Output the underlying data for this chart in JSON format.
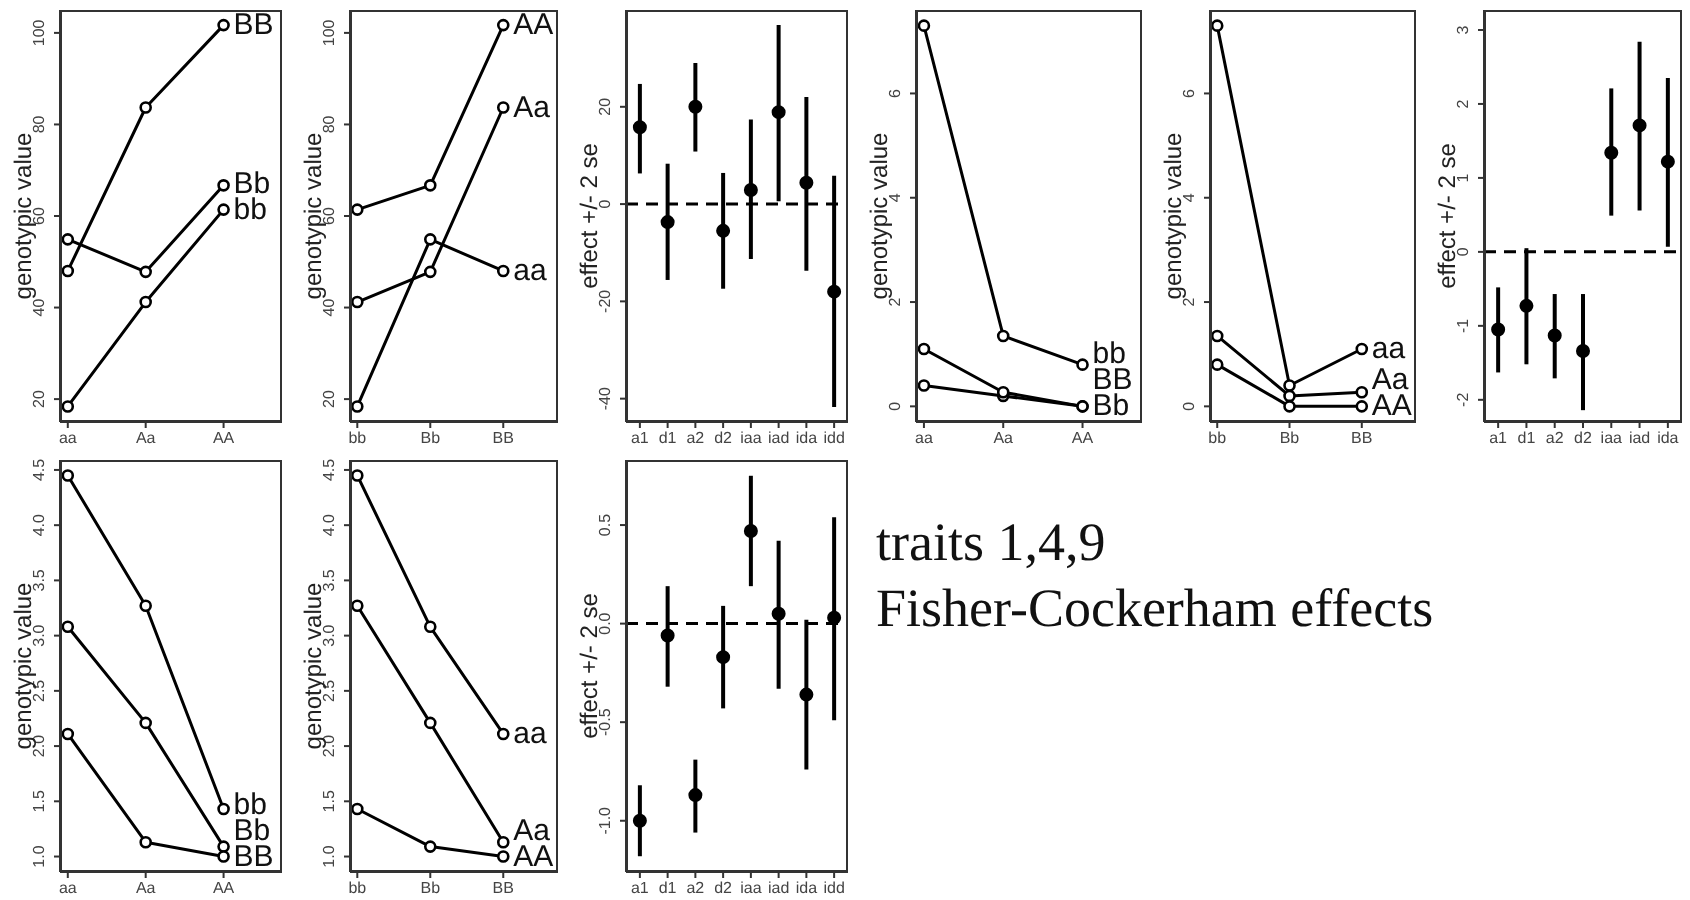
{
  "chart_data": [
    {
      "type": "line",
      "categories": [
        "aa",
        "Aa",
        "AA"
      ],
      "ylabel": "genotypic value",
      "ylim": [
        15,
        105
      ],
      "yticks": [
        20,
        40,
        60,
        80,
        100
      ],
      "marker": "circle",
      "series": [
        {
          "name": "BB",
          "color": "#000000",
          "values": [
            48,
            83.7,
            101.7
          ]
        },
        {
          "name": "Bb",
          "color": "#000000",
          "values": [
            54.9,
            47.8,
            66.7
          ]
        },
        {
          "name": "bb",
          "color": "#000000",
          "values": [
            18.4,
            41.2,
            61.4
          ]
        }
      ]
    },
    {
      "type": "line",
      "categories": [
        "bb",
        "Bb",
        "BB"
      ],
      "ylabel": "genotypic value",
      "ylim": [
        15,
        105
      ],
      "yticks": [
        20,
        40,
        60,
        80,
        100
      ],
      "marker": "circle",
      "series": [
        {
          "name": "AA",
          "color": "#000000",
          "values": [
            61.4,
            66.7,
            101.7
          ]
        },
        {
          "name": "Aa",
          "color": "#000000",
          "values": [
            41.2,
            47.8,
            83.7
          ]
        },
        {
          "name": "aa",
          "color": "#000000",
          "values": [
            18.4,
            54.9,
            48
          ]
        }
      ]
    },
    {
      "type": "scatter",
      "categories": [
        "a1",
        "d1",
        "a2",
        "d2",
        "iaa",
        "iad",
        "ida",
        "idd"
      ],
      "ylabel": "effect +/- 2 se",
      "ylim": [
        -44.8,
        39.9
      ],
      "yticks": [
        -40,
        -20,
        0,
        20
      ],
      "marker": "circle",
      "color": "#000000",
      "values": [
        15.8,
        -3.7,
        20,
        -5.5,
        2.9,
        18.9,
        4.4,
        -18
      ],
      "errors": [
        [
          6.3,
          24.7
        ],
        [
          -15.6,
          8.3
        ],
        [
          10.8,
          29
        ],
        [
          -17.4,
          6.4
        ],
        [
          -11.3,
          17.4
        ],
        [
          0.6,
          36.8
        ],
        [
          -13.7,
          22
        ],
        [
          -41.7,
          5.8
        ]
      ],
      "ref_lines": [
        {
          "axis": "y",
          "value": 0,
          "line_style": "dashed",
          "color": "#000000"
        }
      ]
    },
    {
      "type": "line",
      "categories": [
        "aa",
        "Aa",
        "AA"
      ],
      "ylabel": "genotypic value",
      "ylim": [
        -0.3,
        7.6
      ],
      "yticks": [
        0,
        2,
        4,
        6
      ],
      "marker": "circle",
      "series": [
        {
          "name": "bb",
          "color": "#000000",
          "values": [
            7.3,
            1.35,
            0.8
          ]
        },
        {
          "name": "Bb",
          "color": "#000000",
          "values": [
            0.4,
            0.2,
            0
          ]
        },
        {
          "name": "BB",
          "color": "#000000",
          "values": [
            1.1,
            0.27,
            0
          ]
        }
      ]
    },
    {
      "type": "line",
      "categories": [
        "bb",
        "Bb",
        "BB"
      ],
      "ylabel": "genotypic value",
      "ylim": [
        -0.3,
        7.6
      ],
      "yticks": [
        0,
        2,
        4,
        6
      ],
      "marker": "circle",
      "series": [
        {
          "name": "aa",
          "color": "#000000",
          "values": [
            7.3,
            0.4,
            1.1
          ]
        },
        {
          "name": "Aa",
          "color": "#000000",
          "values": [
            1.35,
            0.2,
            0.27
          ]
        },
        {
          "name": "AA",
          "color": "#000000",
          "values": [
            0.8,
            0,
            0
          ]
        }
      ]
    },
    {
      "type": "scatter",
      "categories": [
        "a1",
        "d1",
        "a2",
        "d2",
        "iaa",
        "iad",
        "ida"
      ],
      "ylabel": "effect +/- 2 se",
      "ylim": [
        -2.3,
        3.27
      ],
      "yticks": [
        -2,
        -1,
        0,
        1,
        2,
        3
      ],
      "marker": "circle",
      "color": "#000000",
      "values": [
        -1.05,
        -0.73,
        -1.13,
        -1.34,
        1.34,
        1.71,
        1.22
      ],
      "errors": [
        [
          -1.63,
          -0.48
        ],
        [
          -1.52,
          0.05
        ],
        [
          -1.71,
          -0.57
        ],
        [
          -2.14,
          -0.57
        ],
        [
          0.49,
          2.21
        ],
        [
          0.56,
          2.84
        ],
        [
          0.07,
          2.35
        ]
      ],
      "ref_lines": [
        {
          "axis": "y",
          "value": 0,
          "line_style": "dashed",
          "color": "#000000"
        }
      ]
    },
    {
      "type": "line",
      "categories": [
        "aa",
        "Aa",
        "AA"
      ],
      "ylabel": "genotypic value",
      "ylim": [
        0.86,
        4.59
      ],
      "yticks": [
        {
          "value": 1,
          "label": "1.0"
        },
        1.5,
        {
          "value": 2,
          "label": "2.0"
        },
        2.5,
        {
          "value": 3,
          "label": "3.0"
        },
        3.5,
        {
          "value": 4,
          "label": "4.0"
        },
        4.5
      ],
      "marker": "circle",
      "series": [
        {
          "name": "bb",
          "color": "#000000",
          "values": [
            4.45,
            3.27,
            1.43
          ]
        },
        {
          "name": "Bb",
          "color": "#000000",
          "values": [
            3.08,
            2.21,
            1.09
          ]
        },
        {
          "name": "BB",
          "color": "#000000",
          "values": [
            2.11,
            1.13,
            1.0
          ]
        }
      ]
    },
    {
      "type": "line",
      "categories": [
        "bb",
        "Bb",
        "BB"
      ],
      "ylabel": "genotypic value",
      "ylim": [
        0.86,
        4.59
      ],
      "yticks": [
        {
          "value": 1,
          "label": "1.0"
        },
        1.5,
        {
          "value": 2,
          "label": "2.0"
        },
        2.5,
        {
          "value": 3,
          "label": "3.0"
        },
        3.5,
        {
          "value": 4,
          "label": "4.0"
        },
        4.5
      ],
      "marker": "circle",
      "series": [
        {
          "name": "aa",
          "color": "#000000",
          "values": [
            4.45,
            3.08,
            2.11
          ]
        },
        {
          "name": "Aa",
          "color": "#000000",
          "values": [
            3.27,
            2.21,
            1.13
          ]
        },
        {
          "name": "AA",
          "color": "#000000",
          "values": [
            1.43,
            1.09,
            1.0
          ]
        }
      ]
    },
    {
      "type": "scatter",
      "categories": [
        "a1",
        "d1",
        "a2",
        "d2",
        "iaa",
        "iad",
        "ida",
        "idd"
      ],
      "ylabel": "effect +/- 2 se",
      "ylim": [
        -1.26,
        0.83
      ],
      "yticks": [
        {
          "value": -1,
          "label": "-1.0"
        },
        -0.5,
        {
          "value": 0,
          "label": "0.0"
        },
        0.5
      ],
      "marker": "circle",
      "color": "#000000",
      "values": [
        -1.0,
        -0.06,
        -0.87,
        -0.17,
        0.47,
        0.05,
        -0.36,
        0.03
      ],
      "errors": [
        [
          -1.18,
          -0.82
        ],
        [
          -0.32,
          0.19
        ],
        [
          -1.06,
          -0.69
        ],
        [
          -0.43,
          0.09
        ],
        [
          0.19,
          0.75
        ],
        [
          -0.33,
          0.42
        ],
        [
          -0.74,
          0.02
        ],
        [
          -0.49,
          0.54
        ]
      ],
      "ref_lines": [
        {
          "axis": "y",
          "value": 0,
          "line_style": "dashed",
          "color": "#000000"
        }
      ]
    },
    {
      "type": "other",
      "annotations": [
        "traits 1,4,9",
        "Fisher-Cockerham effects"
      ]
    }
  ]
}
